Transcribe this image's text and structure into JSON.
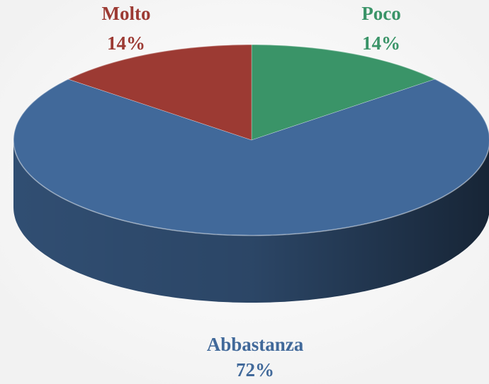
{
  "chart_data": {
    "type": "pie",
    "categories": [
      "Poco",
      "Abbastanza",
      "Molto"
    ],
    "values": [
      14,
      72,
      14
    ],
    "value_labels": [
      "14%",
      "72%",
      "14%"
    ],
    "colors": [
      "#3a9468",
      "#41699a",
      "#9c3a33"
    ]
  }
}
